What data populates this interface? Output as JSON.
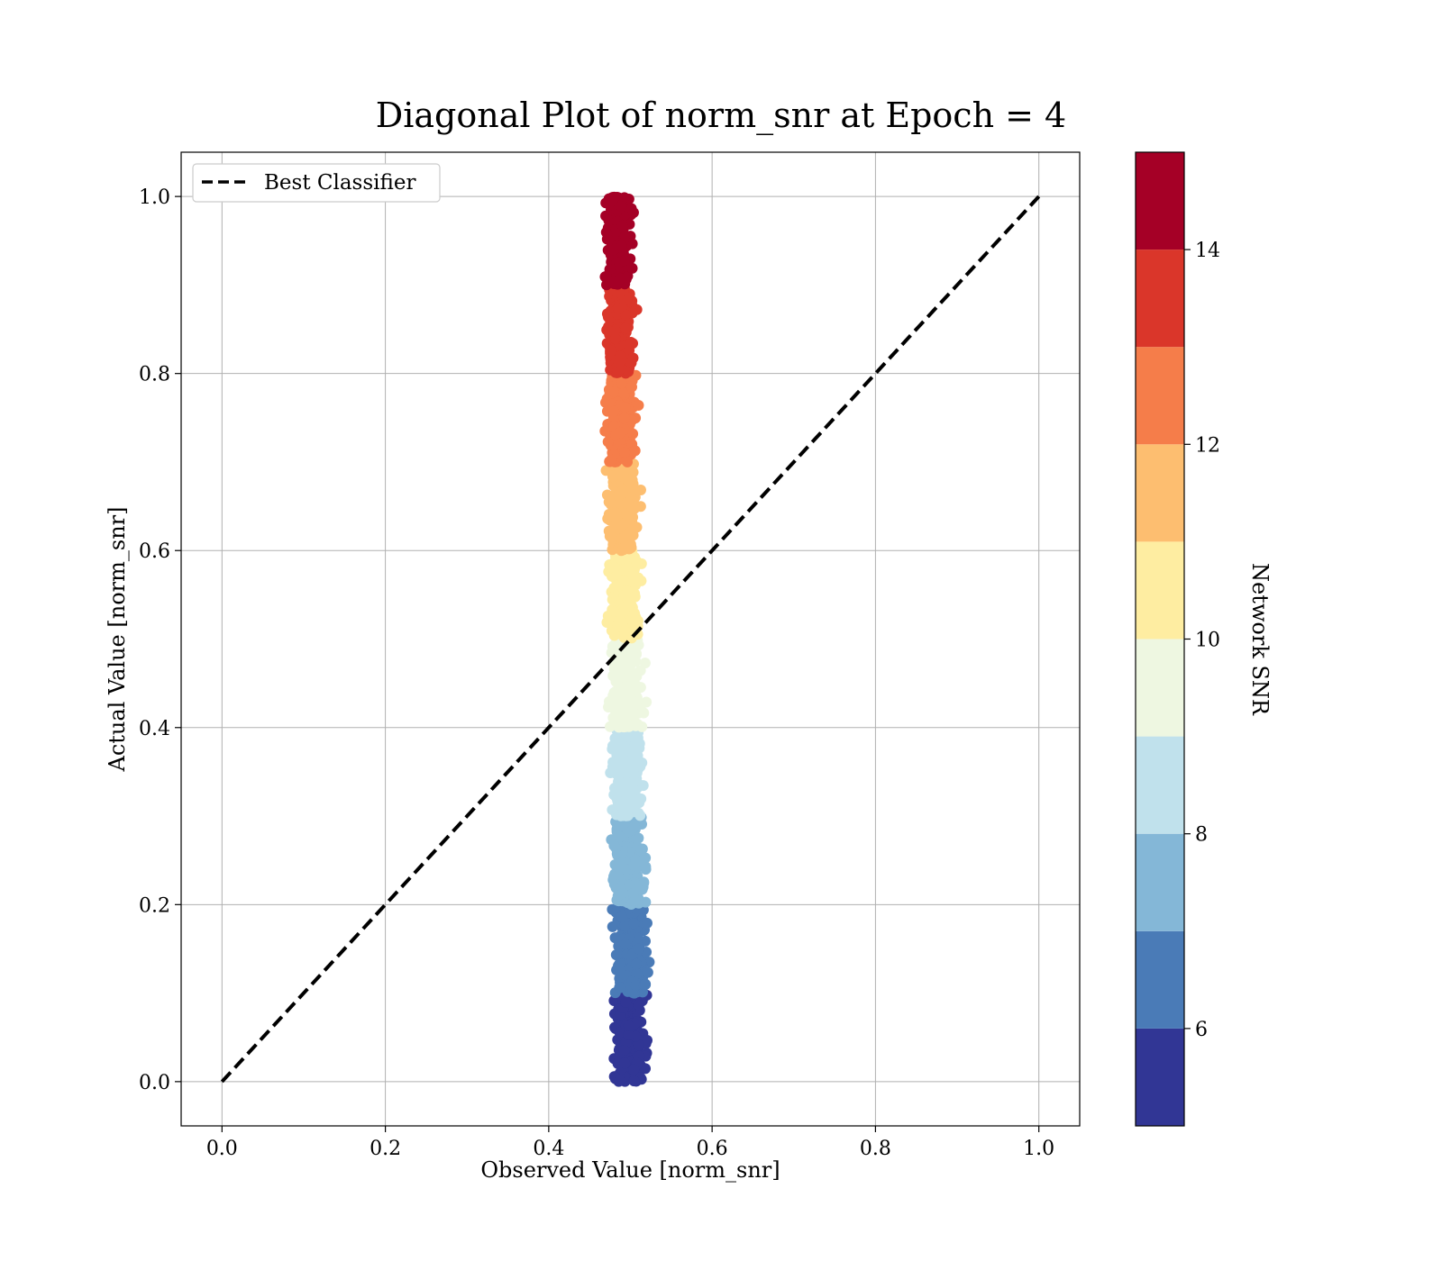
{
  "chart_data": {
    "type": "scatter",
    "title": "Diagonal Plot of norm_snr at Epoch = 4",
    "xlabel": "Observed Value [norm_snr]",
    "ylabel": "Actual Value [norm_snr]",
    "xlim": [
      -0.05,
      1.05
    ],
    "ylim": [
      -0.05,
      1.05
    ],
    "xticks": [
      "0.0",
      "0.2",
      "0.4",
      "0.6",
      "0.8",
      "1.0"
    ],
    "yticks": [
      "0.0",
      "0.2",
      "0.4",
      "0.6",
      "0.8",
      "1.0"
    ],
    "grid": true,
    "legend": {
      "position": "top-left",
      "entries": [
        "Best Classifier"
      ]
    },
    "reference_line": {
      "name": "Best Classifier",
      "style": "dashed",
      "color": "#000000",
      "x": [
        0.0,
        1.0
      ],
      "y": [
        0.0,
        1.0
      ]
    },
    "scatter": {
      "description_bands": [
        {
          "y_range": [
            0.0,
            0.1
          ],
          "x_center": 0.5,
          "x_spread": 0.025,
          "snr": 5.5
        },
        {
          "y_range": [
            0.1,
            0.2
          ],
          "x_center": 0.5,
          "x_spread": 0.025,
          "snr": 6.5
        },
        {
          "y_range": [
            0.2,
            0.3
          ],
          "x_center": 0.497,
          "x_spread": 0.025,
          "snr": 7.5
        },
        {
          "y_range": [
            0.3,
            0.4
          ],
          "x_center": 0.496,
          "x_spread": 0.025,
          "snr": 8.5
        },
        {
          "y_range": [
            0.4,
            0.5
          ],
          "x_center": 0.495,
          "x_spread": 0.024,
          "snr": 9.5
        },
        {
          "y_range": [
            0.5,
            0.6
          ],
          "x_center": 0.493,
          "x_spread": 0.024,
          "snr": 10.5
        },
        {
          "y_range": [
            0.6,
            0.7
          ],
          "x_center": 0.49,
          "x_spread": 0.023,
          "snr": 11.5
        },
        {
          "y_range": [
            0.7,
            0.8
          ],
          "x_center": 0.489,
          "x_spread": 0.022,
          "snr": 12.5
        },
        {
          "y_range": [
            0.8,
            0.9
          ],
          "x_center": 0.487,
          "x_spread": 0.021,
          "snr": 13.5
        },
        {
          "y_range": [
            0.9,
            1.0
          ],
          "x_center": 0.485,
          "x_spread": 0.02,
          "snr": 14.5
        }
      ]
    },
    "colorbar": {
      "label": "Network SNR",
      "range": [
        5,
        15
      ],
      "ticks": [
        "6",
        "8",
        "10",
        "12",
        "14"
      ],
      "tick_values": [
        6,
        8,
        10,
        12,
        14
      ],
      "bins": [
        {
          "from": 5,
          "to": 6,
          "color": "#313695"
        },
        {
          "from": 6,
          "to": 7,
          "color": "#4a7bb7"
        },
        {
          "from": 7,
          "to": 8,
          "color": "#84b7d7"
        },
        {
          "from": 8,
          "to": 9,
          "color": "#c0e1ec"
        },
        {
          "from": 9,
          "to": 10,
          "color": "#eef7e1"
        },
        {
          "from": 10,
          "to": 11,
          "color": "#feeda1"
        },
        {
          "from": 11,
          "to": 12,
          "color": "#fdbe70"
        },
        {
          "from": 12,
          "to": 13,
          "color": "#f57d4a"
        },
        {
          "from": 13,
          "to": 14,
          "color": "#da362a"
        },
        {
          "from": 14,
          "to": 15,
          "color": "#a50026"
        }
      ]
    }
  }
}
